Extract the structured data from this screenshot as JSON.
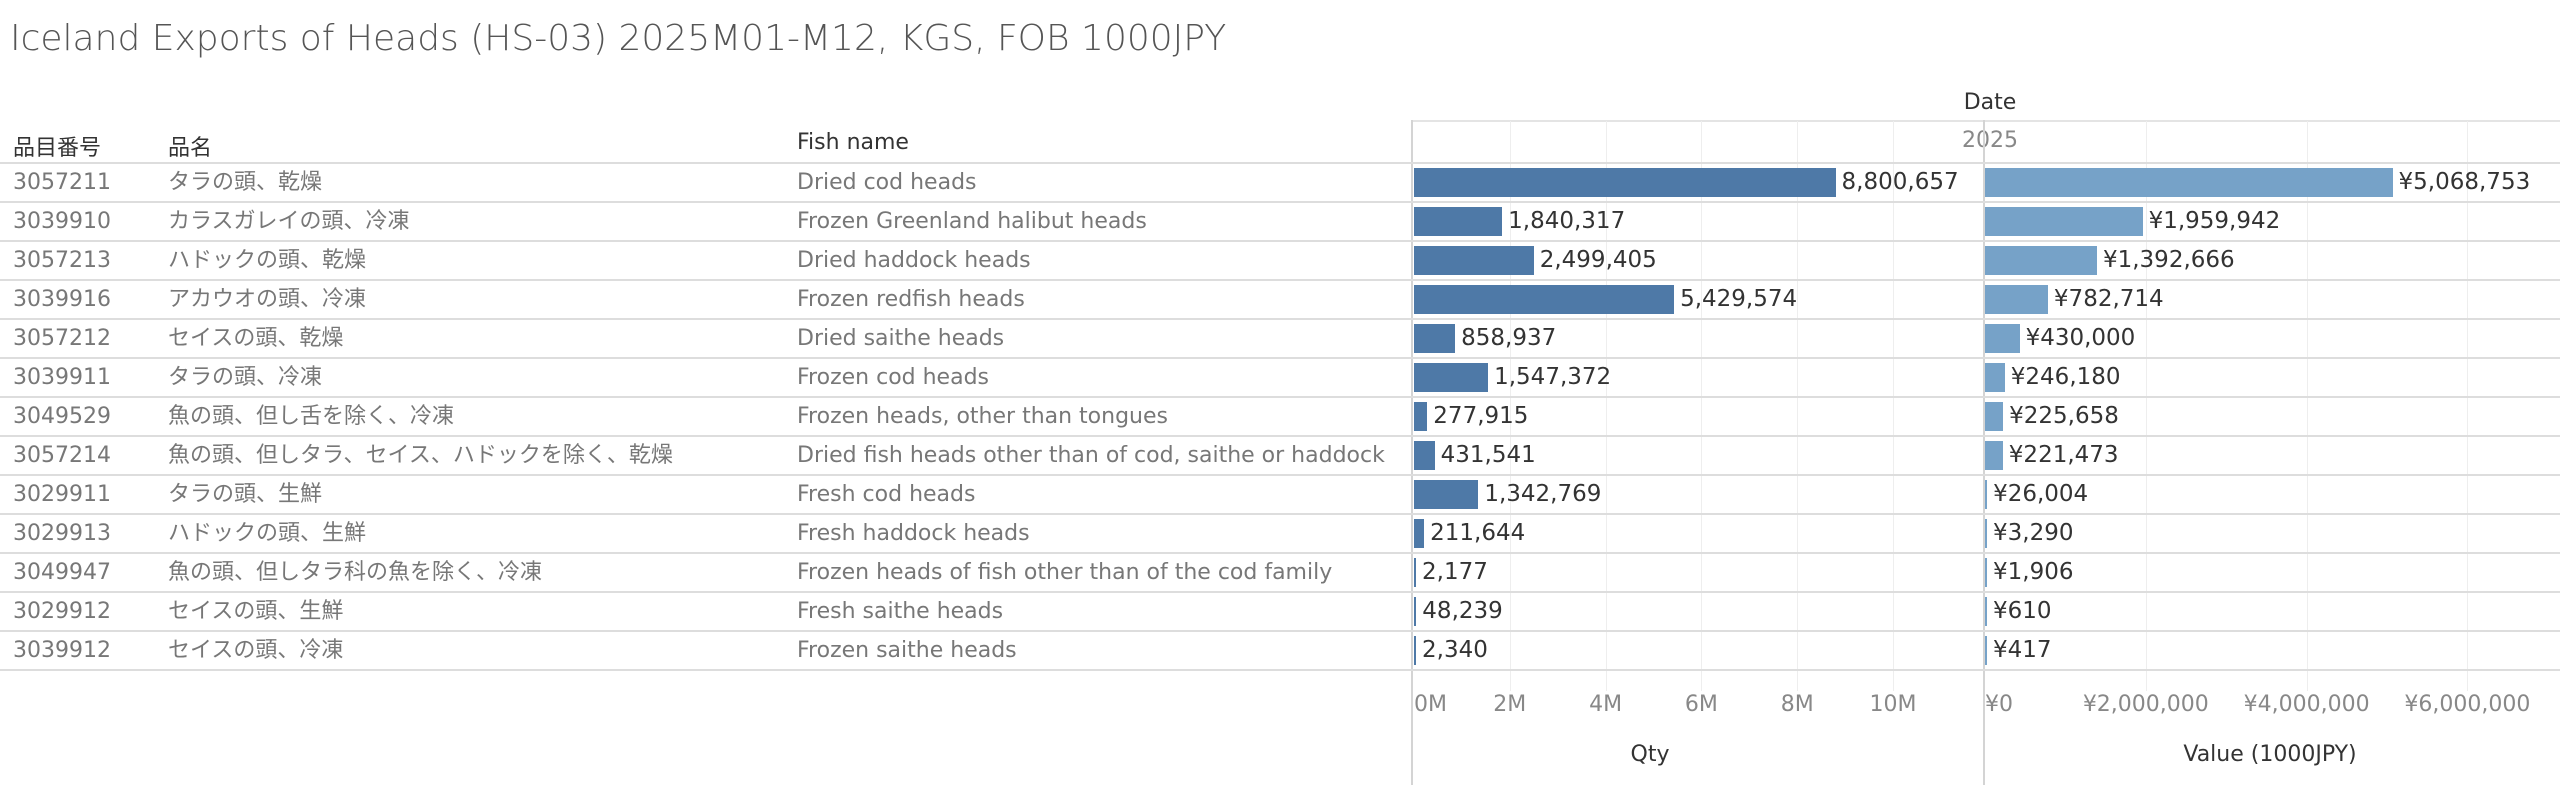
{
  "title": "Iceland Exports of Heads (HS-03) 2025M01-M12, KGS, FOB 1000JPY",
  "headers": {
    "code": "品目番号",
    "name_ja": "品名",
    "fish_name": "Fish name",
    "date": "Date",
    "year": "2025"
  },
  "colors": {
    "qty_bar": "#4e79a7",
    "value_bar": "#76a2c8"
  },
  "chart_data": [
    {
      "type": "bar",
      "orientation": "horizontal",
      "xlabel": "Qty",
      "xlim": [
        0,
        11000000
      ],
      "ticks": [
        0,
        2000000,
        4000000,
        6000000,
        8000000,
        10000000
      ],
      "tick_labels": [
        "0M",
        "2M",
        "4M",
        "6M",
        "8M",
        "10M"
      ],
      "values": [
        8800657,
        1840317,
        2499405,
        5429574,
        858937,
        1547372,
        277915,
        431541,
        1342769,
        211644,
        2177,
        48239,
        2340
      ],
      "value_labels": [
        "8,800,657",
        "1,840,317",
        "2,499,405",
        "5,429,574",
        "858,937",
        "1,547,372",
        "277,915",
        "431,541",
        "1,342,769",
        "211,644",
        "2,177",
        "48,239",
        "2,340"
      ]
    },
    {
      "type": "bar",
      "orientation": "horizontal",
      "xlabel": "Value (1000JPY)",
      "xlim": [
        0,
        7200000
      ],
      "ticks": [
        0,
        2000000,
        4000000,
        6000000
      ],
      "tick_labels": [
        "¥0",
        "¥2,000,000",
        "¥4,000,000",
        "¥6,000,000"
      ],
      "values": [
        5068753,
        1959942,
        1392666,
        782714,
        430000,
        246180,
        225658,
        221473,
        26004,
        3290,
        1906,
        610,
        417
      ],
      "value_labels": [
        "¥5,068,753",
        "¥1,959,942",
        "¥1,392,666",
        "¥782,714",
        "¥430,000",
        "¥246,180",
        "¥225,658",
        "¥221,473",
        "¥26,004",
        "¥3,290",
        "¥1,906",
        "¥610",
        "¥417"
      ]
    }
  ],
  "rows": [
    {
      "code": "3057211",
      "name_ja": "タラの頭、乾燥",
      "fish_name": "Dried cod heads"
    },
    {
      "code": "3039910",
      "name_ja": "カラスガレイの頭、冷凍",
      "fish_name": "Frozen Greenland halibut heads"
    },
    {
      "code": "3057213",
      "name_ja": "ハドックの頭、乾燥",
      "fish_name": "Dried haddock heads"
    },
    {
      "code": "3039916",
      "name_ja": "アカウオの頭、冷凍",
      "fish_name": "Frozen redfish heads"
    },
    {
      "code": "3057212",
      "name_ja": "セイスの頭、乾燥",
      "fish_name": "Dried saithe heads"
    },
    {
      "code": "3039911",
      "name_ja": "タラの頭、冷凍",
      "fish_name": "Frozen cod heads"
    },
    {
      "code": "3049529",
      "name_ja": "魚の頭、但し舌を除く、冷凍",
      "fish_name": "Frozen heads, other than tongues"
    },
    {
      "code": "3057214",
      "name_ja": "魚の頭、但しタラ、セイス、ハドックを除く、乾燥",
      "fish_name": "Dried fish heads other than of cod, saithe or haddock"
    },
    {
      "code": "3029911",
      "name_ja": "タラの頭、生鮮",
      "fish_name": "Fresh cod heads"
    },
    {
      "code": "3029913",
      "name_ja": "ハドックの頭、生鮮",
      "fish_name": "Fresh haddock heads"
    },
    {
      "code": "3049947",
      "name_ja": "魚の頭、但しタラ科の魚を除く、冷凍",
      "fish_name": "Frozen heads of fish other than of the cod family"
    },
    {
      "code": "3029912",
      "name_ja": "セイスの頭、生鮮",
      "fish_name": "Fresh saithe heads"
    },
    {
      "code": "3039912",
      "name_ja": "セイスの頭、冷凍",
      "fish_name": "Frozen saithe heads"
    }
  ]
}
